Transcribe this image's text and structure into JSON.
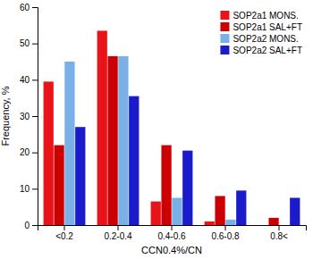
{
  "chart_data": {
    "type": "bar",
    "x_label": "CCN0.4%/CN",
    "y_label": "Frequency, %",
    "categories": [
      "<0.2",
      "0.2-0.4",
      "0.4-0.6",
      "0.6-0.8",
      "0.8<"
    ],
    "series": [
      {
        "name": "SOP2a1 MONS.",
        "color": "#e8141a",
        "values": [
          39.5,
          53.5,
          6.5,
          1.0,
          0.0
        ]
      },
      {
        "name": "SOP2a1 SAL+FT",
        "color": "#cc0000",
        "values": [
          22.0,
          46.5,
          22.0,
          8.0,
          2.0
        ]
      },
      {
        "name": "SOP2a2 MONS.",
        "color": "#7ab0e8",
        "values": [
          45.0,
          46.5,
          7.5,
          1.5,
          0.0
        ]
      },
      {
        "name": "SOP2a2 SAL+FT",
        "color": "#1b1bcb",
        "values": [
          27.0,
          35.5,
          20.5,
          9.5,
          7.5
        ]
      }
    ],
    "ylim": [
      0,
      60
    ],
    "yticks": [
      0,
      10,
      20,
      30,
      40,
      50,
      60
    ],
    "grid": false,
    "legend": "upper right"
  }
}
